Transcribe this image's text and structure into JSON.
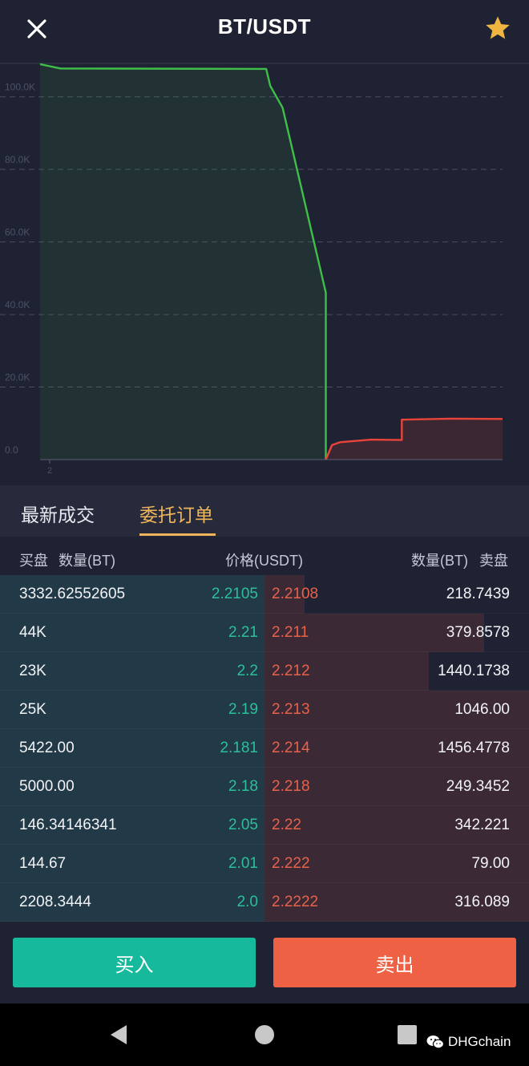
{
  "header": {
    "title": "BT/USDT",
    "close_icon": "close-icon",
    "star_icon": "star-icon",
    "star_color": "#f0b441"
  },
  "chart_data": {
    "type": "area",
    "title": "",
    "xlabel": "",
    "ylabel": "",
    "ylim": [
      0,
      100000
    ],
    "y_ticks": [
      "100.0K",
      "80.0K",
      "60.0K",
      "40.0K",
      "20.0K",
      "0.0"
    ],
    "x_ticks": [
      "2"
    ],
    "grid": true,
    "series": [
      {
        "side": "bids",
        "color": "#3fbf4a",
        "points": [
          [
            0.0,
            109000
          ],
          [
            0.01,
            107800
          ],
          [
            0.11,
            107700
          ],
          [
            0.112,
            103000
          ],
          [
            0.118,
            97000
          ],
          [
            0.139,
            46000
          ],
          [
            0.139,
            0
          ]
        ]
      },
      {
        "side": "asks",
        "color": "#e8443a",
        "points": [
          [
            0.139,
            0
          ],
          [
            0.142,
            4000
          ],
          [
            0.146,
            4800
          ],
          [
            0.161,
            5500
          ],
          [
            0.176,
            5400
          ],
          [
            0.176,
            11000
          ],
          [
            0.2,
            11300
          ],
          [
            0.225,
            11200
          ]
        ]
      }
    ]
  },
  "tabs": [
    {
      "label": "最新成交",
      "active": false
    },
    {
      "label": "委托订单",
      "active": true
    }
  ],
  "columns": {
    "bid_side": "买盘",
    "bid_qty": "数量(BT)",
    "price": "价格(USDT)",
    "ask_qty": "数量(BT)",
    "ask_side": "卖盘"
  },
  "orderbook": {
    "rows": [
      {
        "bid_qty": "3332.62552605",
        "bid_price": "2.2105",
        "ask_price": "2.2108",
        "ask_qty": "218.7439",
        "ask_depth": 0.15
      },
      {
        "bid_qty": "44K",
        "bid_price": "2.21",
        "ask_price": "2.211",
        "ask_qty": "379.8578",
        "ask_depth": 0.83
      },
      {
        "bid_qty": "23K",
        "bid_price": "2.2",
        "ask_price": "2.212",
        "ask_qty": "1440.1738",
        "ask_depth": 0.62
      },
      {
        "bid_qty": "25K",
        "bid_price": "2.19",
        "ask_price": "2.213",
        "ask_qty": "1046.00",
        "ask_depth": 1.0
      },
      {
        "bid_qty": "5422.00",
        "bid_price": "2.181",
        "ask_price": "2.214",
        "ask_qty": "1456.4778",
        "ask_depth": 1.0
      },
      {
        "bid_qty": "5000.00",
        "bid_price": "2.18",
        "ask_price": "2.218",
        "ask_qty": "249.3452",
        "ask_depth": 1.0
      },
      {
        "bid_qty": "146.34146341",
        "bid_price": "2.05",
        "ask_price": "2.22",
        "ask_qty": "342.221",
        "ask_depth": 1.0
      },
      {
        "bid_qty": "144.67",
        "bid_price": "2.01",
        "ask_price": "2.222",
        "ask_qty": "79.00",
        "ask_depth": 1.0
      },
      {
        "bid_qty": "2208.3444",
        "bid_price": "2.0",
        "ask_price": "2.2222",
        "ask_qty": "316.089",
        "ask_depth": 1.0
      }
    ]
  },
  "actions": {
    "buy_label": "买入",
    "sell_label": "卖出",
    "buy_color": "#16b99b",
    "sell_color": "#ee6145"
  },
  "navbar": {
    "back_icon": "back-triangle-icon",
    "home_icon": "home-circle-icon",
    "recent_icon": "recent-square-icon"
  },
  "watermark": {
    "text": "DHGchain",
    "icon": "wechat-icon"
  }
}
